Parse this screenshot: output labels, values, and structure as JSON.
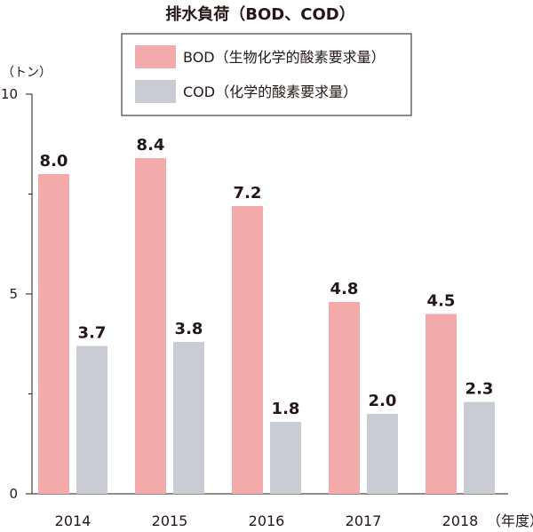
{
  "chart_data": {
    "type": "bar",
    "title": "排水負荷（BOD、COD）",
    "ylabel": "（トン）",
    "xlabel": "（年度）",
    "categories": [
      "2014",
      "2015",
      "2016",
      "2017",
      "2018"
    ],
    "series": [
      {
        "name": "BOD（生物化学的酸素要求量）",
        "values": [
          8.0,
          8.4,
          7.2,
          4.8,
          4.5
        ],
        "color": "#f3aaaa"
      },
      {
        "name": "COD（化学的酸素要求量）",
        "values": [
          3.7,
          3.8,
          1.8,
          2.0,
          2.3
        ],
        "color": "#c9cdd3"
      }
    ],
    "ylim": [
      0,
      10
    ],
    "yticks": [
      0,
      5,
      10
    ],
    "minor_yticks": [
      2.5,
      7.5
    ],
    "grid": false,
    "legend_position": "top"
  }
}
